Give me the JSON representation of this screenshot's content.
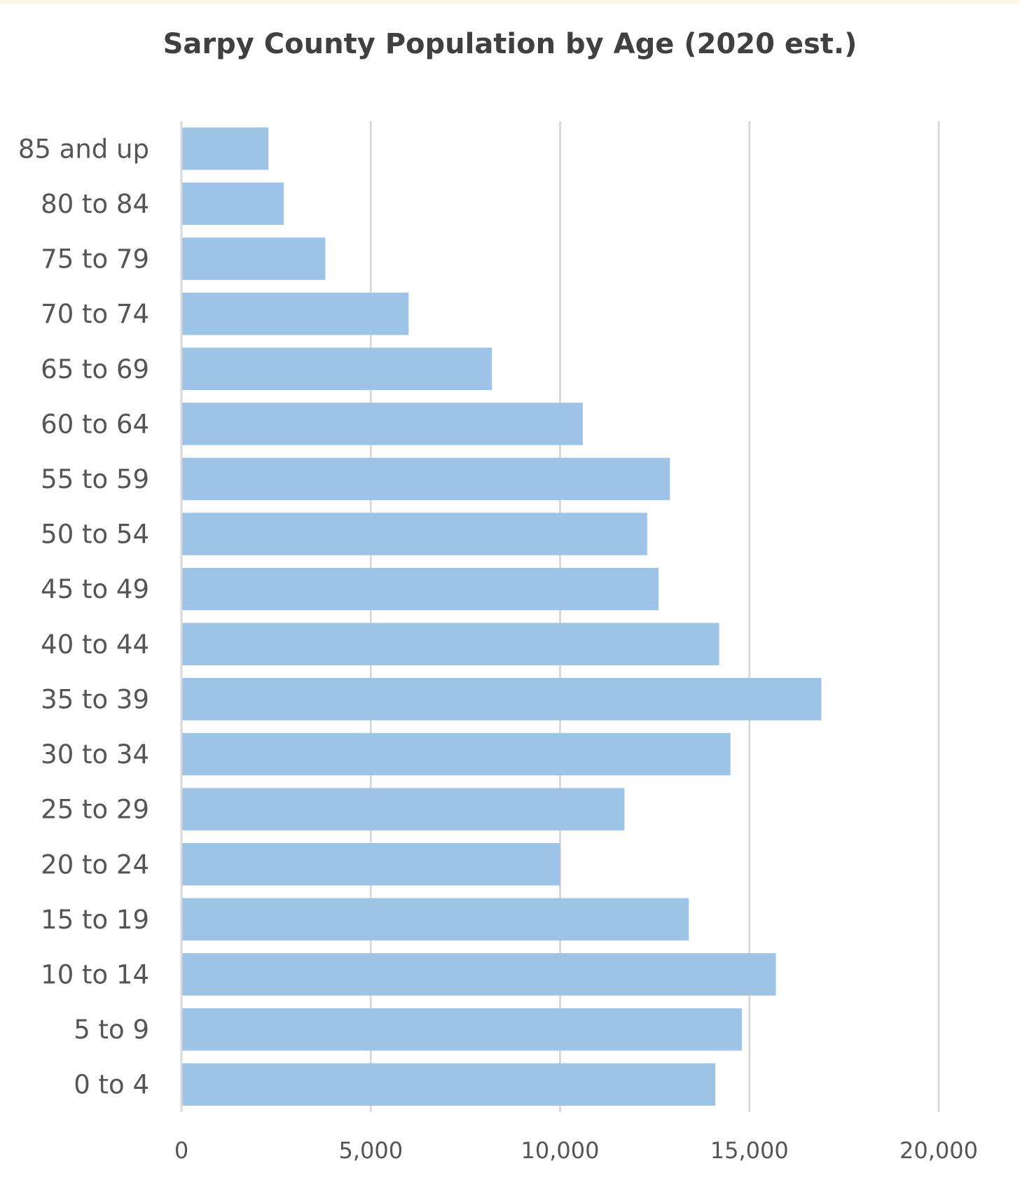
{
  "chart_data": {
    "type": "bar",
    "orientation": "horizontal",
    "title": "Sarpy County Population by Age (2020 est.)",
    "xlabel": "",
    "ylabel": "",
    "xlim": [
      0,
      20000
    ],
    "ticks": [
      0,
      5000,
      10000,
      15000,
      20000
    ],
    "tick_labels": [
      "0",
      "5,000",
      "10,000",
      "15,000",
      "20,000"
    ],
    "grid": true,
    "bar_color": "#9dc3e6",
    "categories": [
      "0 to 4",
      "5 to 9",
      "10 to 14",
      "15 to 19",
      "20 to 24",
      "25 to 29",
      "30 to 34",
      "35 to 39",
      "40 to 44",
      "45 to 49",
      "50 to 54",
      "55 to 59",
      "60 to 64",
      "65 to 69",
      "70 to 74",
      "75 to 79",
      "80 to 84",
      "85 and up"
    ],
    "values": [
      14100,
      14800,
      15700,
      13400,
      10000,
      11700,
      14500,
      16900,
      14200,
      12600,
      12300,
      12900,
      10600,
      8200,
      6000,
      3800,
      2700,
      2300
    ]
  }
}
